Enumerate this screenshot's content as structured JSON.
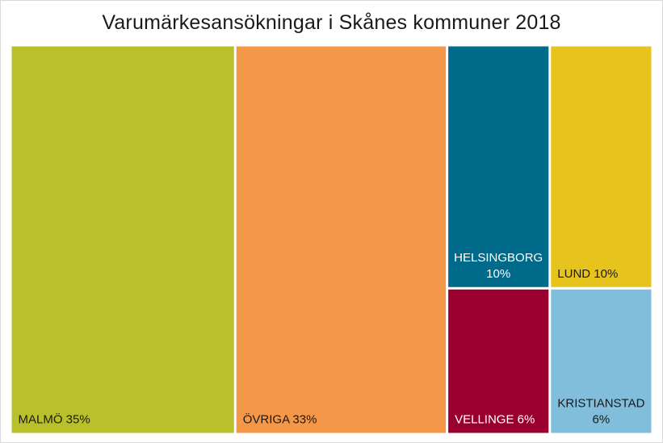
{
  "chart_data": {
    "type": "treemap",
    "title": "Varumärkesansökningar i Skånes kommuner 2018",
    "unit": "%",
    "items": [
      {
        "name": "MALMÖ",
        "value": 35,
        "label": "MALMÖ 35%",
        "color": "#b9c12a",
        "text_color": "#1a1a1a"
      },
      {
        "name": "ÖVRIGA",
        "value": 33,
        "label": "ÖVRIGA 33%",
        "color": "#f59748",
        "text_color": "#1a1a1a"
      },
      {
        "name": "HELSINGBORG",
        "value": 10,
        "label": "HELSINGBORG 10%",
        "color": "#006a8b",
        "text_color": "#ffffff"
      },
      {
        "name": "LUND",
        "value": 10,
        "label": "LUND 10%",
        "color": "#e6c31d",
        "text_color": "#1a1a1a"
      },
      {
        "name": "VELLINGE",
        "value": 6,
        "label": "VELLINGE 6%",
        "color": "#990030",
        "text_color": "#ffffff"
      },
      {
        "name": "KRISTIANSTAD",
        "value": 6,
        "label": "KRISTIANSTAD 6%",
        "color": "#80bedb",
        "text_color": "#1a1a1a"
      }
    ]
  }
}
